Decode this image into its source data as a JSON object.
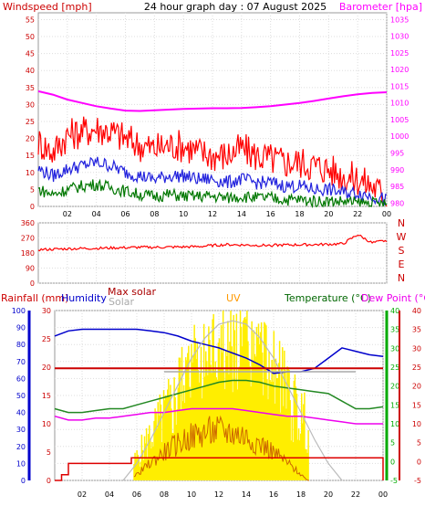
{
  "chart_data": [
    {
      "type": "line",
      "title": "24 hour graph day : 07 August 2025",
      "left_axis_label": "Windspeed [mph]",
      "right_axis_label": "Barometer [hpa]",
      "left_ticks": [
        0,
        5,
        10,
        15,
        20,
        25,
        30,
        35,
        40,
        45,
        50,
        55
      ],
      "right_ticks": [
        980,
        985,
        990,
        995,
        1000,
        1005,
        1010,
        1015,
        1020,
        1025,
        1030,
        1035
      ],
      "x_ticks": [
        "02",
        "04",
        "06",
        "08",
        "10",
        "12",
        "14",
        "16",
        "18",
        "20",
        "22",
        "00"
      ],
      "ylim": [
        0,
        57
      ],
      "y2lim": [
        979,
        1037
      ],
      "colors": {
        "gust": "#ff0000",
        "wind": "#2222dd",
        "avg": "#007700",
        "baro": "#ff00ff",
        "axis_left": "#cc0000",
        "axis_right": "#ff00ff"
      },
      "series": [
        {
          "name": "Barometer",
          "axis": "right",
          "color": "#ff00ff",
          "x": [
            0,
            1,
            2,
            3,
            4,
            5,
            6,
            7,
            8,
            9,
            10,
            11,
            12,
            13,
            14,
            15,
            16,
            17,
            18,
            19,
            20,
            21,
            22,
            23,
            24
          ],
          "values": [
            1013.5,
            1012.5,
            1011,
            1010,
            1009,
            1008.3,
            1007.7,
            1007.6,
            1007.8,
            1008,
            1008.2,
            1008.3,
            1008.4,
            1008.4,
            1008.5,
            1008.7,
            1009,
            1009.5,
            1010,
            1010.6,
            1011.3,
            1012,
            1012.6,
            1013,
            1013.2
          ]
        },
        {
          "name": "Gust",
          "axis": "left",
          "color": "#ff0000",
          "x": [
            0,
            1,
            2,
            3,
            4,
            5,
            6,
            7,
            8,
            9,
            10,
            11,
            12,
            13,
            14,
            15,
            16,
            17,
            18,
            19,
            20,
            21,
            22,
            23,
            24
          ],
          "values": [
            19,
            16,
            21,
            22,
            23,
            22,
            20,
            18,
            17,
            18,
            18,
            16,
            15,
            15,
            17,
            15,
            14,
            13,
            13,
            12,
            11,
            9,
            8,
            6,
            3
          ]
        },
        {
          "name": "Wind",
          "axis": "left",
          "color": "#2222dd",
          "x": [
            0,
            1,
            2,
            3,
            4,
            5,
            6,
            7,
            8,
            9,
            10,
            11,
            12,
            13,
            14,
            15,
            16,
            17,
            18,
            19,
            20,
            21,
            22,
            23,
            24
          ],
          "values": [
            11,
            9,
            11,
            12,
            13,
            12,
            10,
            9,
            8,
            9,
            9,
            8,
            8,
            7,
            8,
            7,
            7,
            6,
            6,
            5,
            5,
            4,
            4,
            3,
            2
          ]
        },
        {
          "name": "Average",
          "axis": "left",
          "color": "#007700",
          "x": [
            0,
            1,
            2,
            3,
            4,
            5,
            6,
            7,
            8,
            9,
            10,
            11,
            12,
            13,
            14,
            15,
            16,
            17,
            18,
            19,
            20,
            21,
            22,
            23,
            24
          ],
          "values": [
            5,
            3.5,
            5,
            6,
            6.5,
            5.5,
            4.5,
            3.5,
            3,
            3.5,
            3,
            3,
            3,
            2.5,
            3,
            2.5,
            2.5,
            2,
            2,
            1.5,
            1.5,
            1.5,
            1,
            1,
            0.5
          ]
        }
      ]
    },
    {
      "type": "scatter",
      "title": "",
      "left_ticks": [
        0,
        90,
        180,
        270,
        360
      ],
      "direction_labels": [
        "N",
        "W",
        "S",
        "E",
        "N"
      ],
      "x_ticks": [
        "02",
        "04",
        "06",
        "08",
        "10",
        "12",
        "14",
        "16",
        "18",
        "20",
        "22",
        "00"
      ],
      "ylim": [
        0,
        360
      ],
      "series": [
        {
          "name": "Direction",
          "color": "#ff0000",
          "x": [
            0,
            1,
            2,
            3,
            4,
            5,
            6,
            7,
            8,
            9,
            10,
            11,
            12,
            13,
            14,
            15,
            16,
            17,
            18,
            19,
            20,
            21,
            22,
            23,
            24
          ],
          "values": [
            200,
            202,
            205,
            207,
            208,
            210,
            212,
            214,
            214,
            215,
            216,
            218,
            225,
            230,
            228,
            226,
            226,
            228,
            229,
            230,
            232,
            235,
            290,
            240,
            255
          ]
        }
      ]
    },
    {
      "type": "line",
      "title": "",
      "labels": {
        "rainfall": "Rainfall (mm)",
        "humidity": "Humidity",
        "max_solar": "Max solar",
        "solar": "Solar",
        "uv": "UV",
        "temperature": "Temperature (°C)",
        "dew_point": "Dew Point (°C)"
      },
      "humidity_ticks": [
        0,
        10,
        20,
        30,
        40,
        50,
        60,
        70,
        80,
        90,
        100
      ],
      "rain_ticks": [
        0,
        5,
        10,
        15,
        20,
        25,
        30
      ],
      "temp_ticks": [
        -5,
        0,
        5,
        10,
        15,
        20,
        25,
        30,
        35,
        40
      ],
      "x_ticks": [
        "02",
        "04",
        "06",
        "08",
        "10",
        "12",
        "14",
        "16",
        "18",
        "20",
        "22",
        "00"
      ],
      "colors": {
        "rain": "#dd0000",
        "humidity": "#0000cc",
        "temp": "#228822",
        "dew": "#ee00ee",
        "solar": "#ffee00",
        "maxsolar": "#bbbbbb",
        "uv": "#cc6600",
        "temp_axis": "#00aa00",
        "rain_axis": "#cc0000"
      },
      "series": [
        {
          "name": "Humidity",
          "color": "#0000cc",
          "x": [
            0,
            1,
            2,
            3,
            4,
            5,
            6,
            7,
            8,
            9,
            10,
            11,
            12,
            13,
            14,
            15,
            16,
            17,
            18,
            19,
            20,
            21,
            22,
            23,
            24
          ],
          "values": [
            85,
            88,
            89,
            89,
            89,
            89,
            89,
            88,
            87,
            85,
            82,
            80,
            78,
            75,
            72,
            68,
            63,
            64,
            64,
            66,
            72,
            78,
            76,
            74,
            73
          ]
        },
        {
          "name": "Temperature",
          "color": "#228822",
          "x": [
            0,
            1,
            2,
            3,
            4,
            5,
            6,
            7,
            8,
            9,
            10,
            11,
            12,
            13,
            14,
            15,
            16,
            17,
            18,
            19,
            20,
            21,
            22,
            23,
            24
          ],
          "values": [
            14,
            13,
            13,
            13.5,
            14,
            14,
            15,
            16,
            17,
            18,
            19,
            20,
            21,
            21.5,
            21.5,
            21,
            20,
            19.5,
            19,
            18.5,
            18,
            16,
            14,
            14,
            14.5
          ]
        },
        {
          "name": "Dew Point",
          "color": "#ee00ee",
          "x": [
            0,
            1,
            2,
            3,
            4,
            5,
            6,
            7,
            8,
            9,
            10,
            11,
            12,
            13,
            14,
            15,
            16,
            17,
            18,
            19,
            20,
            21,
            22,
            23,
            24
          ],
          "values": [
            12,
            11,
            11,
            11.5,
            11.5,
            12,
            12.5,
            13,
            13,
            13.5,
            14,
            14,
            14,
            14,
            13.5,
            13,
            12.5,
            12,
            12,
            11.5,
            11,
            10.5,
            10,
            10,
            10
          ]
        },
        {
          "name": "Max solar",
          "color": "#bbbbbb",
          "x": [
            5,
            6,
            7,
            8,
            9,
            10,
            11,
            12,
            13,
            14,
            15,
            16,
            17,
            18,
            19,
            20,
            21
          ],
          "values": [
            0,
            5,
            12,
            20,
            28,
            36,
            42,
            46,
            47,
            46,
            42,
            36,
            28,
            20,
            12,
            5,
            0
          ]
        },
        {
          "name": "Rainfall",
          "color": "#dd0000",
          "x": [
            0,
            0.5,
            1,
            4,
            5.5,
            5.6,
            8,
            10,
            12,
            16,
            20,
            21,
            22,
            24
          ],
          "values": [
            0,
            1,
            3,
            3,
            3,
            4,
            4,
            4,
            4,
            4,
            4,
            4,
            4,
            0
          ]
        }
      ]
    }
  ]
}
